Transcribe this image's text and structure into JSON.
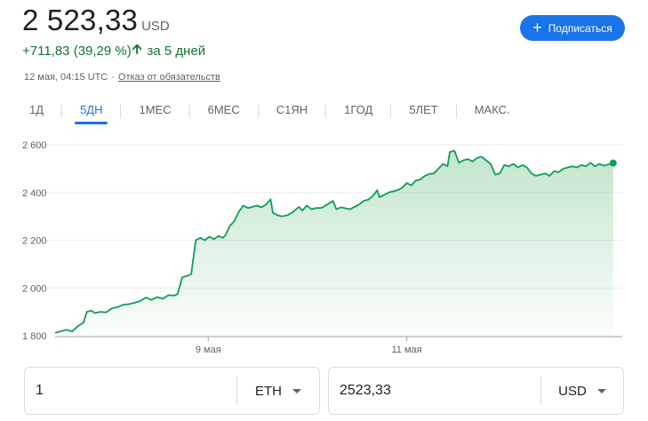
{
  "quote": {
    "price": "2 523,33",
    "currency": "USD",
    "change": "+711,83 (39,29 %)",
    "change_period": "за 5 дней",
    "timestamp": "12 мая, 04:15 UTC",
    "separator": "·",
    "disclaimer": "Отказ от обязательств",
    "up_color": "#137333",
    "accent_color": "#1a73e8"
  },
  "subscribe": {
    "icon": "plus-icon",
    "label": "Подписаться"
  },
  "tabs": [
    {
      "label": "1Д",
      "active": false
    },
    {
      "label": "5ДН",
      "active": true
    },
    {
      "label": "1МЕС",
      "active": false
    },
    {
      "label": "6МЕС",
      "active": false
    },
    {
      "label": "С1ЯН",
      "active": false
    },
    {
      "label": "1ГОД",
      "active": false
    },
    {
      "label": "5ЛЕТ",
      "active": false
    },
    {
      "label": "МАКС.",
      "active": false
    }
  ],
  "chart_data": {
    "type": "area",
    "line_color": "#0f9d58",
    "grid": true,
    "y_ticks": [
      {
        "value": 1800,
        "label": "1 800"
      },
      {
        "value": 2000,
        "label": "2 000"
      },
      {
        "value": 2200,
        "label": "2 200"
      },
      {
        "value": 2400,
        "label": "2 400"
      },
      {
        "value": 2600,
        "label": "2 600"
      }
    ],
    "ylim": [
      1800,
      2680
    ],
    "xlim": [
      0,
      5
    ],
    "x_ticks": [
      {
        "value": 1.35,
        "label": "9 мая"
      },
      {
        "value": 3.1,
        "label": "11 мая"
      }
    ],
    "series": [
      {
        "values": [
          [
            0.0,
            1812
          ],
          [
            0.1,
            1825
          ],
          [
            0.15,
            1818
          ],
          [
            0.2,
            1840
          ],
          [
            0.25,
            1855
          ],
          [
            0.28,
            1900
          ],
          [
            0.32,
            1905
          ],
          [
            0.35,
            1895
          ],
          [
            0.4,
            1900
          ],
          [
            0.45,
            1898
          ],
          [
            0.5,
            1915
          ],
          [
            0.55,
            1920
          ],
          [
            0.6,
            1930
          ],
          [
            0.65,
            1932
          ],
          [
            0.7,
            1938
          ],
          [
            0.75,
            1945
          ],
          [
            0.8,
            1960
          ],
          [
            0.85,
            1950
          ],
          [
            0.9,
            1962
          ],
          [
            0.95,
            1955
          ],
          [
            1.0,
            1970
          ],
          [
            1.05,
            1968
          ],
          [
            1.08,
            1975
          ],
          [
            1.12,
            2045
          ],
          [
            1.16,
            2050
          ],
          [
            1.2,
            2058
          ],
          [
            1.24,
            2200
          ],
          [
            1.28,
            2210
          ],
          [
            1.32,
            2200
          ],
          [
            1.36,
            2215
          ],
          [
            1.4,
            2205
          ],
          [
            1.44,
            2218
          ],
          [
            1.48,
            2210
          ],
          [
            1.5,
            2220
          ],
          [
            1.54,
            2260
          ],
          [
            1.58,
            2280
          ],
          [
            1.62,
            2320
          ],
          [
            1.66,
            2345
          ],
          [
            1.7,
            2335
          ],
          [
            1.74,
            2340
          ],
          [
            1.78,
            2345
          ],
          [
            1.82,
            2338
          ],
          [
            1.86,
            2350
          ],
          [
            1.9,
            2372
          ],
          [
            1.92,
            2315
          ],
          [
            1.96,
            2305
          ],
          [
            2.0,
            2300
          ],
          [
            2.05,
            2305
          ],
          [
            2.1,
            2320
          ],
          [
            2.15,
            2340
          ],
          [
            2.18,
            2325
          ],
          [
            2.22,
            2345
          ],
          [
            2.26,
            2330
          ],
          [
            2.3,
            2335
          ],
          [
            2.35,
            2336
          ],
          [
            2.4,
            2350
          ],
          [
            2.45,
            2365
          ],
          [
            2.48,
            2330
          ],
          [
            2.52,
            2338
          ],
          [
            2.56,
            2334
          ],
          [
            2.6,
            2330
          ],
          [
            2.64,
            2340
          ],
          [
            2.68,
            2350
          ],
          [
            2.72,
            2365
          ],
          [
            2.76,
            2370
          ],
          [
            2.8,
            2385
          ],
          [
            2.84,
            2410
          ],
          [
            2.86,
            2380
          ],
          [
            2.9,
            2390
          ],
          [
            2.94,
            2400
          ],
          [
            2.98,
            2405
          ],
          [
            3.02,
            2410
          ],
          [
            3.06,
            2420
          ],
          [
            3.1,
            2440
          ],
          [
            3.14,
            2430
          ],
          [
            3.18,
            2450
          ],
          [
            3.22,
            2455
          ],
          [
            3.26,
            2470
          ],
          [
            3.3,
            2478
          ],
          [
            3.34,
            2480
          ],
          [
            3.38,
            2500
          ],
          [
            3.42,
            2520
          ],
          [
            3.46,
            2510
          ],
          [
            3.48,
            2570
          ],
          [
            3.52,
            2575
          ],
          [
            3.56,
            2525
          ],
          [
            3.6,
            2535
          ],
          [
            3.64,
            2540
          ],
          [
            3.68,
            2530
          ],
          [
            3.72,
            2545
          ],
          [
            3.76,
            2550
          ],
          [
            3.8,
            2535
          ],
          [
            3.84,
            2520
          ],
          [
            3.88,
            2475
          ],
          [
            3.92,
            2480
          ],
          [
            3.96,
            2515
          ],
          [
            4.0,
            2510
          ],
          [
            4.04,
            2520
          ],
          [
            4.08,
            2505
          ],
          [
            4.12,
            2515
          ],
          [
            4.16,
            2505
          ],
          [
            4.2,
            2480
          ],
          [
            4.24,
            2470
          ],
          [
            4.28,
            2475
          ],
          [
            4.32,
            2480
          ],
          [
            4.36,
            2470
          ],
          [
            4.4,
            2490
          ],
          [
            4.44,
            2485
          ],
          [
            4.48,
            2500
          ],
          [
            4.52,
            2505
          ],
          [
            4.56,
            2510
          ],
          [
            4.6,
            2505
          ],
          [
            4.64,
            2515
          ],
          [
            4.68,
            2510
          ],
          [
            4.72,
            2525
          ],
          [
            4.76,
            2510
          ],
          [
            4.8,
            2520
          ],
          [
            4.84,
            2512
          ],
          [
            4.88,
            2518
          ],
          [
            4.92,
            2523.33
          ]
        ]
      }
    ]
  },
  "converter": {
    "from": {
      "value": "1",
      "currency": "ETH"
    },
    "to": {
      "value": "2523,33",
      "currency": "USD"
    }
  }
}
